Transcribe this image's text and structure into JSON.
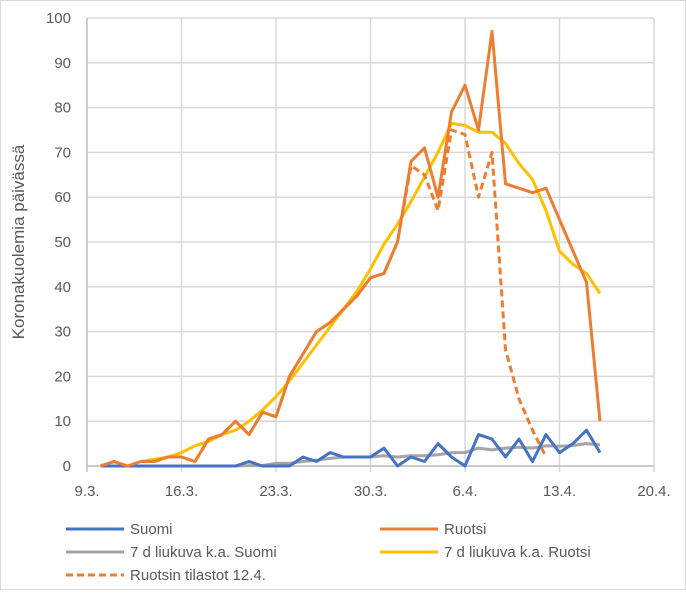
{
  "chart_data": {
    "type": "line",
    "title": "",
    "xlabel": "",
    "ylabel": "Koronakuolemia päivässä",
    "ylim": [
      0,
      100
    ],
    "yticks": [
      "0",
      "10",
      "20",
      "30",
      "40",
      "50",
      "60",
      "70",
      "80",
      "90",
      "100"
    ],
    "xticks": [
      "9.3.",
      "16.3.",
      "23.3.",
      "30.3.",
      "6.4.",
      "13.4.",
      "20.4."
    ],
    "grid": true,
    "legend_position": "bottom",
    "x": [
      "10.3.",
      "11.3.",
      "12.3.",
      "13.3.",
      "14.3.",
      "15.3.",
      "16.3.",
      "17.3.",
      "18.3.",
      "19.3.",
      "20.3.",
      "21.3.",
      "22.3.",
      "23.3.",
      "24.3.",
      "25.3.",
      "26.3.",
      "27.3.",
      "28.3.",
      "29.3.",
      "30.3.",
      "31.3.",
      "1.4.",
      "2.4.",
      "3.4.",
      "4.4.",
      "5.4.",
      "6.4.",
      "7.4.",
      "8.4.",
      "9.4.",
      "10.4.",
      "11.4.",
      "12.4.",
      "13.4.",
      "14.4.",
      "15.4.",
      "16.4."
    ],
    "series": [
      {
        "name": "Suomi",
        "color": "#4472C4",
        "dash": false,
        "values": [
          0,
          0,
          0,
          0,
          0,
          0,
          0,
          0,
          0,
          0,
          0,
          1,
          0,
          0,
          0,
          2,
          1,
          3,
          2,
          2,
          2,
          4,
          0,
          2,
          1,
          5,
          2,
          0,
          7,
          6,
          2,
          6,
          1,
          7,
          3,
          5,
          8,
          3
        ]
      },
      {
        "name": "Ruotsi",
        "color": "#ED7D31",
        "dash": false,
        "values": [
          0,
          1,
          0,
          1,
          1,
          2,
          2,
          1,
          6,
          7,
          10,
          7,
          12,
          11,
          20,
          25,
          30,
          32,
          35,
          38,
          42,
          43,
          50,
          68,
          71,
          60,
          79,
          85,
          75,
          97,
          63,
          62,
          61,
          62,
          55,
          48,
          41,
          10
        ]
      },
      {
        "name": "7 d liukuva k.a. Suomi",
        "color": "#A5A5A5",
        "dash": false,
        "values": [
          null,
          null,
          null,
          0,
          0,
          0,
          0,
          0,
          0,
          0,
          0,
          0.1,
          0.1,
          0.6,
          0.6,
          1,
          1.3,
          1.7,
          2,
          2,
          2,
          2.3,
          2,
          2.3,
          2.3,
          2.5,
          3,
          3,
          4,
          3.6,
          4,
          4.2,
          4,
          4.5,
          4.4,
          4.6,
          5,
          4.7
        ]
      },
      {
        "name": "7 d liukuva k.a. Ruotsi",
        "color": "#FFC000",
        "dash": false,
        "values": [
          null,
          null,
          null,
          1,
          1.5,
          2,
          3,
          4.5,
          5.5,
          7,
          8,
          10,
          12.5,
          15.5,
          19,
          23,
          27,
          31,
          35,
          39,
          44,
          49.5,
          54,
          59,
          64.5,
          70,
          76.5,
          76,
          74.5,
          74.5,
          72,
          67.5,
          64,
          57,
          48,
          45,
          43,
          38.5
        ]
      },
      {
        "name": "Ruotsin tilastot 12.4.",
        "color": "#ED7D31",
        "dash": true,
        "values": [
          0,
          1,
          0,
          1,
          1,
          2,
          2,
          1,
          6,
          7,
          10,
          7,
          12,
          11,
          20,
          25,
          30,
          32,
          35,
          38,
          42,
          43,
          50,
          67,
          65,
          57,
          75,
          74,
          60,
          70,
          26,
          15,
          8,
          2,
          null,
          null,
          null,
          null
        ]
      }
    ]
  }
}
